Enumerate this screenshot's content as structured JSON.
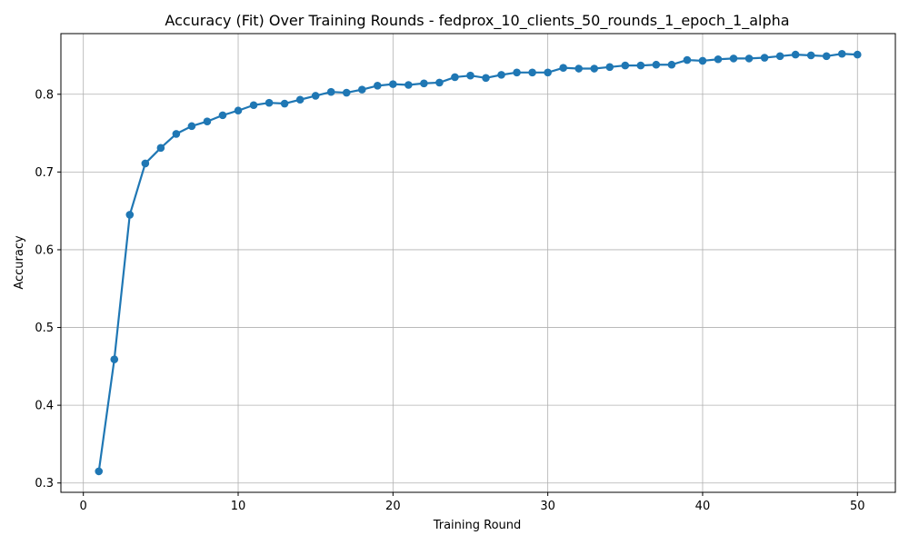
{
  "chart_data": {
    "type": "line",
    "title": "Accuracy (Fit) Over Training Rounds  - fedprox_10_clients_50_rounds_1_epoch_1_alpha",
    "xlabel": "Training Round",
    "ylabel": "Accuracy",
    "xlim": [
      -1.45,
      52.45
    ],
    "ylim": [
      0.288,
      0.878
    ],
    "xticks": [
      0,
      10,
      20,
      30,
      40,
      50
    ],
    "xtick_labels": [
      "0",
      "10",
      "20",
      "30",
      "40",
      "50"
    ],
    "yticks": [
      0.3,
      0.4,
      0.5,
      0.6,
      0.7,
      0.8
    ],
    "ytick_labels": [
      "0.3",
      "0.4",
      "0.5",
      "0.6",
      "0.7",
      "0.8"
    ],
    "grid": true,
    "series": [
      {
        "color": "#1f77b4",
        "marker": "circle",
        "x": [
          1,
          2,
          3,
          4,
          5,
          6,
          7,
          8,
          9,
          10,
          11,
          12,
          13,
          14,
          15,
          16,
          17,
          18,
          19,
          20,
          21,
          22,
          23,
          24,
          25,
          26,
          27,
          28,
          29,
          30,
          31,
          32,
          33,
          34,
          35,
          36,
          37,
          38,
          39,
          40,
          41,
          42,
          43,
          44,
          45,
          46,
          47,
          48,
          49,
          50
        ],
        "y": [
          0.315,
          0.459,
          0.645,
          0.711,
          0.731,
          0.749,
          0.759,
          0.765,
          0.773,
          0.779,
          0.786,
          0.789,
          0.788,
          0.793,
          0.798,
          0.803,
          0.802,
          0.806,
          0.811,
          0.813,
          0.812,
          0.814,
          0.815,
          0.822,
          0.824,
          0.821,
          0.825,
          0.828,
          0.828,
          0.828,
          0.834,
          0.833,
          0.833,
          0.835,
          0.837,
          0.837,
          0.838,
          0.838,
          0.844,
          0.843,
          0.845,
          0.846,
          0.846,
          0.847,
          0.849,
          0.851,
          0.85,
          0.849,
          0.852,
          0.851
        ]
      }
    ]
  }
}
